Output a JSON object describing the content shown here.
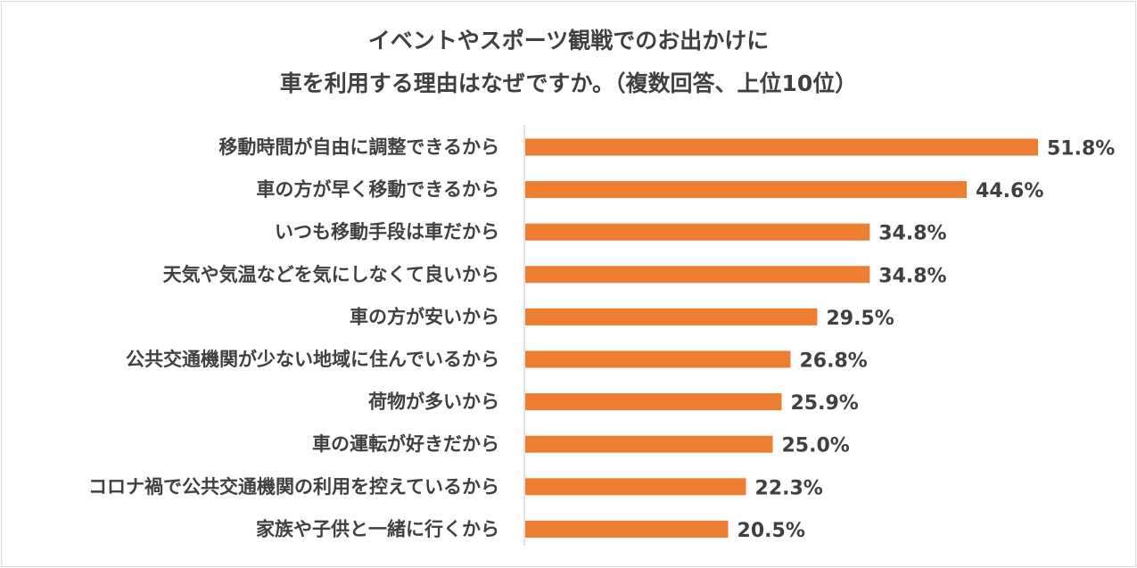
{
  "chart_data": {
    "type": "bar",
    "orientation": "horizontal",
    "title_lines": [
      "イベントやスポーツ観戦でのお出かけに",
      "車を利用する理由はなぜですか。（複数回答、上位10位）"
    ],
    "categories": [
      "移動時間が自由に調整できるから",
      "車の方が早く移動できるから",
      "いつも移動手段は車だから",
      "天気や気温などを気にしなくて良いから",
      "車の方が安いから",
      "公共交通機関が少ない地域に住んでいるから",
      "荷物が多いから",
      "車の運転が好きだから",
      "コロナ禍で公共交通機関の利用を控えているから",
      "家族や子供と一緒に行くから"
    ],
    "values": [
      51.8,
      44.6,
      34.8,
      34.8,
      29.5,
      26.8,
      25.9,
      25.0,
      22.3,
      20.5
    ],
    "value_labels": [
      "51.8%",
      "44.6%",
      "34.8%",
      "34.8%",
      "29.5%",
      "26.8%",
      "25.9%",
      "25.0%",
      "22.3%",
      "20.5%"
    ],
    "bar_color": "#ed7d31",
    "axis_color": "#d9d9d9",
    "xlim": [
      0,
      51.8
    ],
    "grid": false,
    "legend": "none"
  }
}
